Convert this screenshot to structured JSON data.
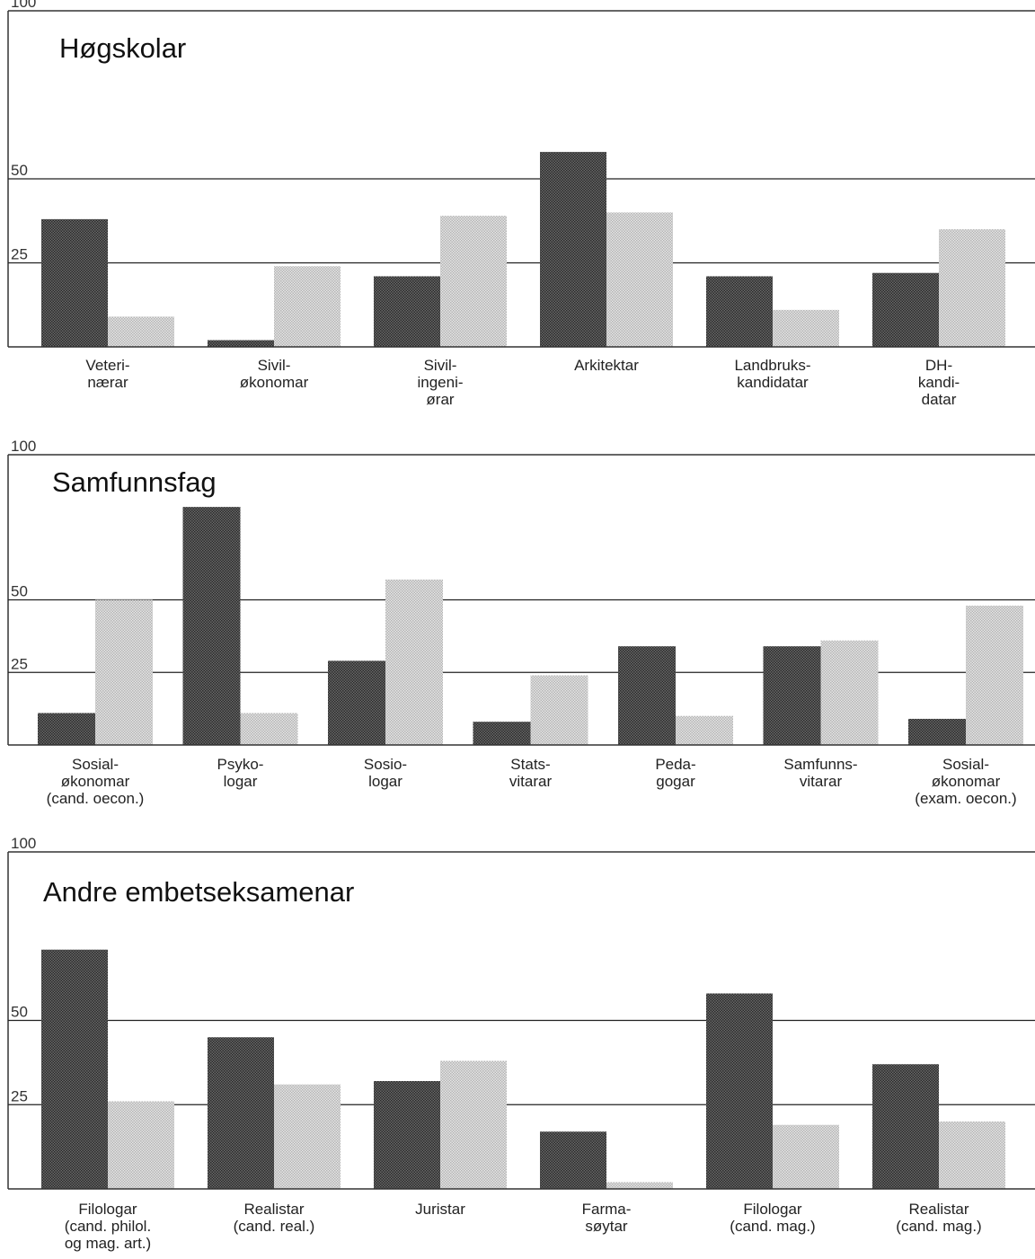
{
  "chart_data": [
    {
      "type": "bar",
      "title": "Høgskolar",
      "categories": [
        [
          "Veteri-",
          "nærar"
        ],
        [
          "Sivil-",
          "økonomar"
        ],
        [
          "Sivil-",
          "ingeni-",
          "ørar"
        ],
        [
          "Arkitektar"
        ],
        [
          "Landbruks-",
          "kandidatar"
        ],
        [
          "DH-",
          "kandi-",
          "datar"
        ]
      ],
      "series": [
        {
          "values": [
            38,
            2,
            21,
            58,
            21,
            22
          ]
        },
        {
          "values": [
            9,
            24,
            39,
            40,
            11,
            35
          ]
        }
      ],
      "ylim": [
        0,
        100
      ],
      "yticks": [
        25,
        50,
        100
      ],
      "grid": true
    },
    {
      "type": "bar",
      "title": "Samfunnsfag",
      "categories": [
        [
          "Sosial-",
          "økonomar",
          "(cand. oecon.)"
        ],
        [
          "Psyko-",
          "logar"
        ],
        [
          "Sosio-",
          "logar"
        ],
        [
          "Stats-",
          "vitarar"
        ],
        [
          "Peda-",
          "gogar"
        ],
        [
          "Samfunns-",
          "vitarar"
        ],
        [
          "Sosial-",
          "økonomar",
          "(exam. oecon.)"
        ]
      ],
      "series": [
        {
          "values": [
            11,
            82,
            29,
            8,
            34,
            34,
            9
          ]
        },
        {
          "values": [
            50,
            11,
            57,
            24,
            10,
            36,
            48
          ]
        }
      ],
      "ylim": [
        0,
        100
      ],
      "yticks": [
        25,
        50,
        100
      ],
      "grid": true
    },
    {
      "type": "bar",
      "title": "Andre embetseksamenar",
      "categories": [
        [
          "Filologar",
          "(cand. philol.",
          "og mag. art.)"
        ],
        [
          "Realistar",
          "(cand. real.)"
        ],
        [
          "Juristar"
        ],
        [
          "Farma-",
          "søytar"
        ],
        [
          "Filologar",
          "(cand. mag.)"
        ],
        [
          "Realistar",
          "(cand. mag.)"
        ]
      ],
      "series": [
        {
          "values": [
            71,
            45,
            32,
            17,
            58,
            37
          ]
        },
        {
          "values": [
            26,
            31,
            38,
            2,
            19,
            20
          ]
        }
      ],
      "ylim": [
        0,
        100
      ],
      "yticks": [
        25,
        50,
        100
      ],
      "grid": true
    }
  ],
  "colors": {
    "series_dark": "#4a4a4a",
    "series_light": "#cfcfcf",
    "frame": "#333333",
    "grid": "#222222"
  }
}
